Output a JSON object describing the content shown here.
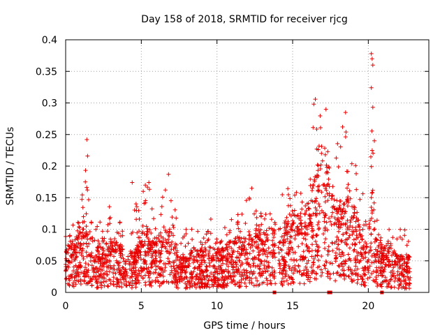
{
  "chart_data": {
    "type": "scatter",
    "title": "Day 158 of 2018, SRMTID for receiver rjcg",
    "xlabel": "GPS time / hours",
    "ylabel": "SRMTID / TECUs",
    "xlim": [
      0,
      24
    ],
    "ylim": [
      0,
      0.4
    ],
    "xticks": [
      0,
      5,
      10,
      15,
      20
    ],
    "xtick_labels": [
      "0",
      "5",
      "10",
      "15",
      "20"
    ],
    "yticks": [
      0,
      0.05,
      0.1,
      0.15,
      0.2,
      0.25,
      0.3,
      0.35,
      0.4
    ],
    "ytick_labels": [
      "0",
      "0.05",
      "0.1",
      "0.15",
      "0.2",
      "0.25",
      "0.3",
      "0.35",
      "0.4"
    ],
    "grid": true,
    "marker": "+",
    "color": "#e60000",
    "envelope_hours": [
      0,
      0.5,
      1,
      1.3,
      1.5,
      2,
      2.5,
      3,
      3.5,
      4,
      4.5,
      5,
      5.5,
      6,
      6.5,
      7,
      7.5,
      8,
      8.5,
      9,
      9.5,
      10,
      10.5,
      11,
      11.5,
      12,
      12.5,
      13,
      13.5,
      14,
      14.5,
      15,
      15.5,
      16,
      16.5,
      17,
      17.5,
      18,
      18.5,
      19,
      19.5,
      20,
      20.2,
      20.5,
      21,
      21.5,
      22,
      22.5,
      22.8
    ],
    "envelope_typical": [
      0.05,
      0.06,
      0.07,
      0.09,
      0.08,
      0.05,
      0.05,
      0.06,
      0.06,
      0.04,
      0.05,
      0.07,
      0.07,
      0.06,
      0.07,
      0.07,
      0.04,
      0.04,
      0.05,
      0.05,
      0.05,
      0.05,
      0.05,
      0.06,
      0.06,
      0.06,
      0.07,
      0.07,
      0.07,
      0.07,
      0.08,
      0.09,
      0.09,
      0.09,
      0.13,
      0.17,
      0.13,
      0.09,
      0.11,
      0.1,
      0.07,
      0.05,
      0.14,
      0.06,
      0.05,
      0.05,
      0.04,
      0.04,
      0.04
    ],
    "envelope_peak": [
      0.09,
      0.11,
      0.13,
      0.24,
      0.15,
      0.1,
      0.13,
      0.14,
      0.13,
      0.1,
      0.13,
      0.17,
      0.17,
      0.14,
      0.18,
      0.19,
      0.1,
      0.1,
      0.11,
      0.1,
      0.12,
      0.1,
      0.11,
      0.12,
      0.13,
      0.16,
      0.14,
      0.13,
      0.13,
      0.16,
      0.17,
      0.16,
      0.16,
      0.17,
      0.3,
      0.3,
      0.2,
      0.26,
      0.29,
      0.22,
      0.2,
      0.1,
      0.38,
      0.13,
      0.1,
      0.1,
      0.1,
      0.1,
      0.09
    ],
    "highlight_points": [
      {
        "x": 1.4,
        "y": 0.242
      },
      {
        "x": 1.45,
        "y": 0.216
      },
      {
        "x": 1.3,
        "y": 0.175
      },
      {
        "x": 4.4,
        "y": 0.174
      },
      {
        "x": 5.5,
        "y": 0.174
      },
      {
        "x": 6.8,
        "y": 0.187
      },
      {
        "x": 12.3,
        "y": 0.165
      },
      {
        "x": 16.5,
        "y": 0.306
      },
      {
        "x": 16.4,
        "y": 0.298
      },
      {
        "x": 17.2,
        "y": 0.29
      },
      {
        "x": 18.5,
        "y": 0.285
      },
      {
        "x": 18.3,
        "y": 0.262
      },
      {
        "x": 20.2,
        "y": 0.378
      },
      {
        "x": 20.25,
        "y": 0.37
      },
      {
        "x": 20.3,
        "y": 0.36
      },
      {
        "x": 20.2,
        "y": 0.324
      },
      {
        "x": 20.3,
        "y": 0.293
      },
      {
        "x": 20.4,
        "y": 0.24
      }
    ],
    "baseline_marks_hours": [
      13.8,
      17.4,
      17.5,
      20.9
    ]
  }
}
